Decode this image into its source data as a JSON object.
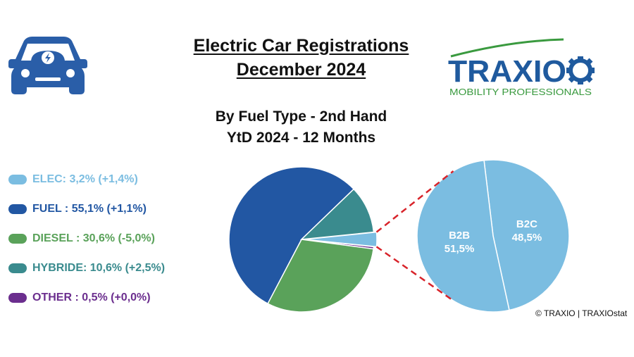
{
  "header": {
    "title_line1": "Electric Car Registrations",
    "title_line2": "December 2024",
    "subtitle_line1": "By Fuel Type - 2nd Hand",
    "subtitle_line2": "YtD 2024 - 12 Months"
  },
  "logo": {
    "brand": "TRAXIO",
    "tagline": "MOBILITY PROFESSIONALS",
    "brand_color": "#1f5a9e",
    "tagline_color": "#3a9a3f"
  },
  "icons": {
    "car": "electric-car-icon"
  },
  "legend": {
    "items": [
      {
        "label": "ELEC: 3,2% (+1,4%)",
        "color": "#7bbde1"
      },
      {
        "label": "FUEL : 55,1% (+1,1%)",
        "color": "#2257a3"
      },
      {
        "label": "DIESEL : 30,6% (-5,0%)",
        "color": "#5aa25a"
      },
      {
        "label": "HYBRIDE: 10,6% (+2,5%)",
        "color": "#3a8b8e"
      },
      {
        "label": "OTHER : 0,5% (+0,0%)",
        "color": "#6b2e8e"
      }
    ]
  },
  "chart_data": [
    {
      "type": "pie",
      "slices": [
        {
          "name": "ELEC",
          "value": 3.2,
          "color": "#7bbde1"
        },
        {
          "name": "OTHER",
          "value": 0.5,
          "color": "#6b2e8e"
        },
        {
          "name": "DIESEL",
          "value": 30.6,
          "color": "#5aa25a"
        },
        {
          "name": "FUEL",
          "value": 55.1,
          "color": "#2257a3"
        },
        {
          "name": "HYBRIDE",
          "value": 10.6,
          "color": "#3a8b8e"
        }
      ],
      "exploded": "ELEC",
      "legend": "left"
    },
    {
      "type": "pie",
      "breakdown_of": "ELEC",
      "slices": [
        {
          "name": "B2C",
          "value": 48.5,
          "label": "B2C",
          "value_label": "48,5%",
          "color": "#7bbde1"
        },
        {
          "name": "B2B",
          "value": 51.5,
          "label": "B2B",
          "value_label": "51,5%",
          "color": "#7bbde1"
        }
      ]
    }
  ],
  "footer": {
    "copyright": "© TRAXIO | TRAXIOstat"
  }
}
